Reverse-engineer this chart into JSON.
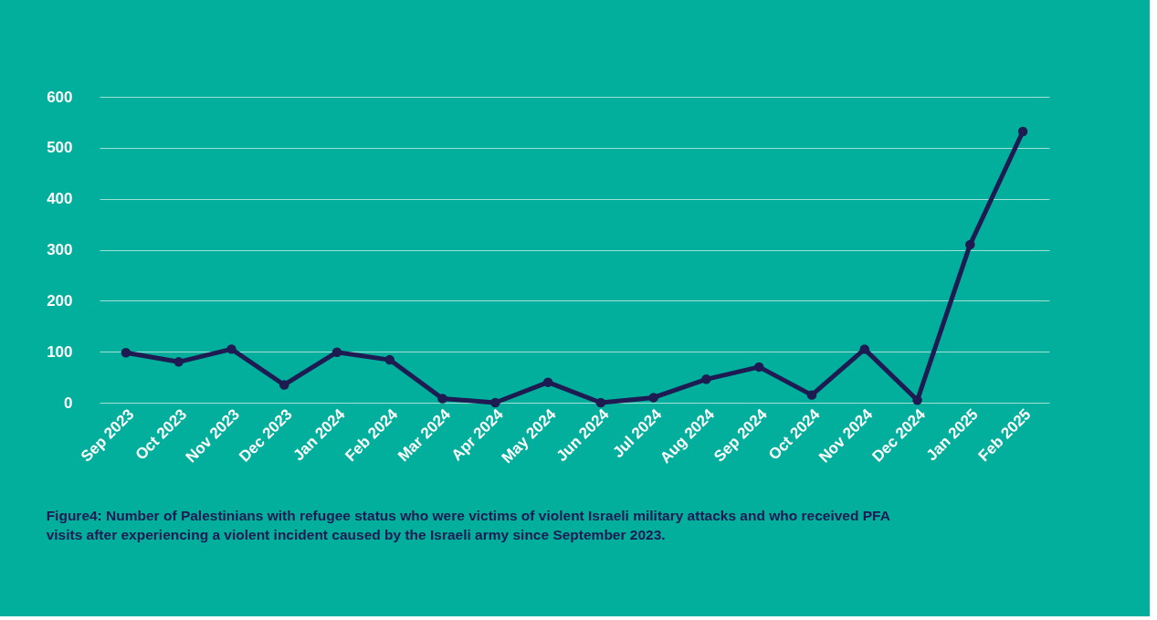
{
  "chart_data": {
    "type": "line",
    "categories": [
      "Sep 2023",
      "Oct 2023",
      "Nov 2023",
      "Dec 2023",
      "Jan 2024",
      "Feb 2024",
      "Mar 2024",
      "Apr 2024",
      "May 2024",
      "Jun 2024",
      "Jul 2024",
      "Aug 2024",
      "Sep 2024",
      "Oct 2024",
      "Nov 2024",
      "Dec 2024",
      "Jan 2025",
      "Feb 2025"
    ],
    "series": [
      {
        "color": "#1e1a52",
        "values": [
          98,
          80,
          105,
          35,
          99,
          84,
          8,
          0,
          40,
          0,
          10,
          46,
          70,
          15,
          105,
          5,
          310,
          532
        ]
      }
    ],
    "ylim": [
      0,
      600
    ],
    "yticks": [
      0,
      100,
      200,
      300,
      400,
      500,
      600
    ],
    "grid": "y",
    "marker": "circle",
    "line_style": "solid",
    "annotations": [
      "Figure4: Number of Palestinians with refugee status who were victims of violent Israeli military attacks and who received PFA visits after experiencing a violent incident caused by the Israeli army since September 2023."
    ]
  }
}
